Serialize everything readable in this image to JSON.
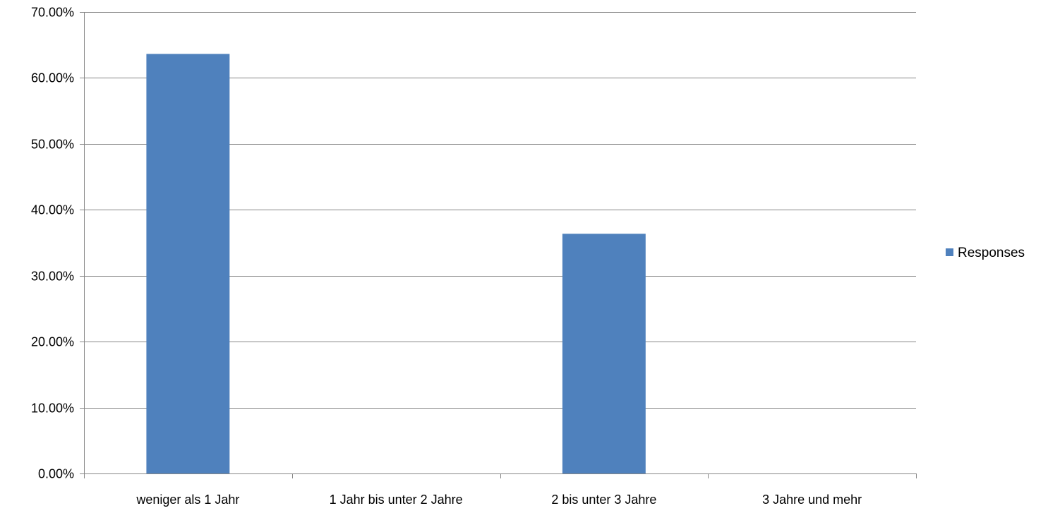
{
  "chart_data": {
    "type": "bar",
    "title": "",
    "xlabel": "",
    "ylabel": "",
    "categories": [
      "weniger als 1 Jahr",
      "1 Jahr bis unter 2 Jahre",
      "2 bis unter 3 Jahre",
      "3 Jahre und mehr"
    ],
    "series": [
      {
        "name": "Responses",
        "values": [
          63.64,
          0,
          36.36,
          0
        ]
      }
    ],
    "ylim": [
      0,
      70
    ],
    "yticks": [
      0,
      10,
      20,
      30,
      40,
      50,
      60,
      70
    ],
    "ytick_labels": [
      "0.00%",
      "10.00%",
      "20.00%",
      "30.00%",
      "40.00%",
      "50.00%",
      "60.00%",
      "70.00%"
    ],
    "grid": true,
    "legend_position": "right",
    "colors": {
      "bar": "#4F81BD",
      "grid": "#868686",
      "axis": "#868686"
    }
  }
}
